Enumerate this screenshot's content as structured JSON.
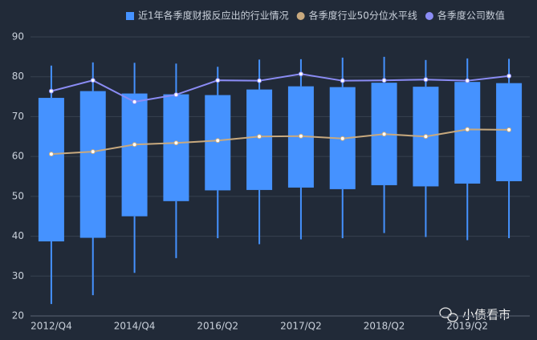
{
  "chart_data": {
    "type": "boxplot",
    "categories": [
      "2012/Q4",
      null,
      "2014/Q4",
      null,
      "2016/Q2",
      null,
      "2017/Q2",
      null,
      "2018/Q2",
      null,
      "2019/Q2",
      null
    ],
    "series": [
      {
        "name": "近1年各季度财报反应出的行业情况",
        "type": "box",
        "color": "#4592ff",
        "min": [
          23,
          25.2,
          30.8,
          34.5,
          39.5,
          38,
          39.2,
          39.5,
          40.8,
          39.8,
          39,
          39.5
        ],
        "q1": [
          38.7,
          39.6,
          45,
          48.8,
          51.5,
          51.6,
          52.2,
          51.8,
          52.8,
          52.5,
          53.2,
          53.8
        ],
        "q3": [
          74.7,
          76.4,
          75.8,
          75.6,
          75.4,
          76.8,
          77.6,
          77.4,
          78.5,
          77.5,
          78.7,
          78.4
        ],
        "max": [
          82.8,
          83.6,
          83.5,
          83.3,
          82.5,
          84.3,
          84.4,
          84.8,
          85,
          84.2,
          84.6,
          84.5
        ]
      },
      {
        "name": "各季度行业50分位水平线",
        "type": "line",
        "color": "#c8a97e",
        "values": [
          60.6,
          61.2,
          63,
          63.4,
          64,
          65,
          65.1,
          64.5,
          65.6,
          65,
          66.8,
          66.7
        ]
      },
      {
        "name": "各季度公司数值",
        "type": "line",
        "color": "#8b8cf5",
        "values": [
          76.4,
          79.1,
          73.7,
          75.5,
          79.1,
          79,
          80.7,
          79,
          79.1,
          79.3,
          79,
          80.2
        ]
      }
    ],
    "ylim": [
      20,
      90
    ],
    "yticks": [
      20,
      30,
      40,
      50,
      60,
      70,
      80,
      90
    ],
    "grid": true,
    "watermark": "小债看市"
  }
}
